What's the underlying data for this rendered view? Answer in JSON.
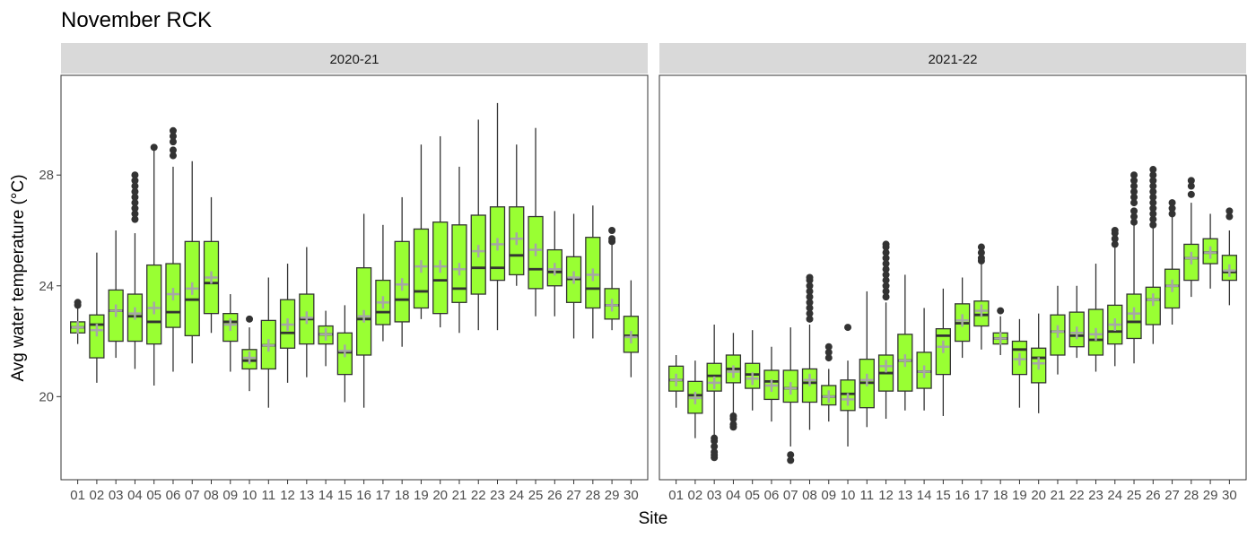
{
  "chart_data": {
    "type": "box",
    "title": "November RCK",
    "xlabel": "Site",
    "ylabel": "Avg water temperature (°C)",
    "ylim": [
      17.0,
      31.6
    ],
    "yticks": [
      20,
      24,
      28
    ],
    "ytick_labels": [
      "20",
      "24",
      "28"
    ],
    "sites": [
      "01",
      "02",
      "03",
      "04",
      "05",
      "06",
      "07",
      "08",
      "09",
      "10",
      "11",
      "12",
      "13",
      "14",
      "15",
      "16",
      "17",
      "18",
      "19",
      "20",
      "21",
      "22",
      "23",
      "24",
      "25",
      "26",
      "27",
      "28",
      "29",
      "30"
    ],
    "colors": {
      "box_fill": "#99ff33",
      "box_stroke": "#333333",
      "median": "#333333",
      "mean_marker": "#a6a6a6",
      "outlier": "#333333",
      "strip_fill": "#d9d9d9"
    },
    "panels": [
      {
        "name": "2020-21",
        "boxes": [
          {
            "site": "01",
            "whisker_low": 21.9,
            "q1": 22.3,
            "median": 22.5,
            "q3": 22.7,
            "whisker_high": 23.2,
            "mean": 22.5,
            "outliers": [
              23.3,
              23.4
            ]
          },
          {
            "site": "02",
            "whisker_low": 20.5,
            "q1": 21.4,
            "median": 22.6,
            "q3": 22.95,
            "whisker_high": 25.2,
            "mean": 22.4,
            "outliers": []
          },
          {
            "site": "03",
            "whisker_low": 21.4,
            "q1": 22.0,
            "median": 23.1,
            "q3": 23.85,
            "whisker_high": 26.0,
            "mean": 23.1,
            "outliers": []
          },
          {
            "site": "04",
            "whisker_low": 21.0,
            "q1": 22.0,
            "median": 22.9,
            "q3": 23.7,
            "whisker_high": 25.9,
            "mean": 23.0,
            "outliers": [
              26.4,
              26.6,
              26.8,
              27.0,
              27.2,
              27.4,
              27.6,
              27.8,
              28.0
            ]
          },
          {
            "site": "05",
            "whisker_low": 20.4,
            "q1": 21.9,
            "median": 22.7,
            "q3": 24.75,
            "whisker_high": 29.0,
            "mean": 23.2,
            "outliers": [
              29.0
            ]
          },
          {
            "site": "06",
            "whisker_low": 20.9,
            "q1": 22.5,
            "median": 23.05,
            "q3": 24.8,
            "whisker_high": 28.3,
            "mean": 23.7,
            "outliers": [
              28.7,
              28.9,
              29.2,
              29.4,
              29.6
            ]
          },
          {
            "site": "07",
            "whisker_low": 21.2,
            "q1": 22.2,
            "median": 23.5,
            "q3": 25.6,
            "whisker_high": 28.5,
            "mean": 23.9,
            "outliers": []
          },
          {
            "site": "08",
            "whisker_low": 22.3,
            "q1": 23.0,
            "median": 24.1,
            "q3": 25.6,
            "whisker_high": 27.2,
            "mean": 24.3,
            "outliers": []
          },
          {
            "site": "09",
            "whisker_low": 20.9,
            "q1": 22.0,
            "median": 22.7,
            "q3": 23.0,
            "whisker_high": 23.7,
            "mean": 22.6,
            "outliers": []
          },
          {
            "site": "10",
            "whisker_low": 20.2,
            "q1": 21.0,
            "median": 21.3,
            "q3": 21.7,
            "whisker_high": 22.5,
            "mean": 21.4,
            "outliers": [
              22.8
            ]
          },
          {
            "site": "11",
            "whisker_low": 19.6,
            "q1": 21.0,
            "median": 21.85,
            "q3": 22.75,
            "whisker_high": 24.3,
            "mean": 21.85,
            "outliers": []
          },
          {
            "site": "12",
            "whisker_low": 20.5,
            "q1": 21.75,
            "median": 22.3,
            "q3": 23.5,
            "whisker_high": 24.8,
            "mean": 22.6,
            "outliers": []
          },
          {
            "site": "13",
            "whisker_low": 20.7,
            "q1": 21.9,
            "median": 22.8,
            "q3": 23.7,
            "whisker_high": 25.4,
            "mean": 22.85,
            "outliers": []
          },
          {
            "site": "14",
            "whisker_low": 21.1,
            "q1": 21.9,
            "median": 22.25,
            "q3": 22.55,
            "whisker_high": 23.1,
            "mean": 22.25,
            "outliers": []
          },
          {
            "site": "15",
            "whisker_low": 19.8,
            "q1": 20.8,
            "median": 21.6,
            "q3": 22.3,
            "whisker_high": 23.3,
            "mean": 21.65,
            "outliers": []
          },
          {
            "site": "16",
            "whisker_low": 19.6,
            "q1": 21.5,
            "median": 22.8,
            "q3": 24.65,
            "whisker_high": 26.6,
            "mean": 22.9,
            "outliers": []
          },
          {
            "site": "17",
            "whisker_low": 22.0,
            "q1": 22.6,
            "median": 23.05,
            "q3": 24.2,
            "whisker_high": 26.2,
            "mean": 23.4,
            "outliers": []
          },
          {
            "site": "18",
            "whisker_low": 21.8,
            "q1": 22.7,
            "median": 23.5,
            "q3": 25.6,
            "whisker_high": 27.2,
            "mean": 24.05,
            "outliers": []
          },
          {
            "site": "19",
            "whisker_low": 22.8,
            "q1": 23.2,
            "median": 23.8,
            "q3": 26.05,
            "whisker_high": 29.1,
            "mean": 24.7,
            "outliers": []
          },
          {
            "site": "20",
            "whisker_low": 22.5,
            "q1": 23.0,
            "median": 24.2,
            "q3": 26.3,
            "whisker_high": 29.4,
            "mean": 24.7,
            "outliers": []
          },
          {
            "site": "21",
            "whisker_low": 22.3,
            "q1": 23.4,
            "median": 23.9,
            "q3": 26.2,
            "whisker_high": 28.3,
            "mean": 24.6,
            "outliers": []
          },
          {
            "site": "22",
            "whisker_low": 22.4,
            "q1": 23.7,
            "median": 24.65,
            "q3": 26.55,
            "whisker_high": 30.0,
            "mean": 25.25,
            "outliers": []
          },
          {
            "site": "23",
            "whisker_low": 22.4,
            "q1": 24.2,
            "median": 24.65,
            "q3": 26.85,
            "whisker_high": 30.6,
            "mean": 25.5,
            "outliers": []
          },
          {
            "site": "24",
            "whisker_low": 24.0,
            "q1": 24.4,
            "median": 25.1,
            "q3": 26.85,
            "whisker_high": 29.1,
            "mean": 25.7,
            "outliers": []
          },
          {
            "site": "25",
            "whisker_low": 22.9,
            "q1": 23.9,
            "median": 24.6,
            "q3": 26.5,
            "whisker_high": 29.7,
            "mean": 25.3,
            "outliers": []
          },
          {
            "site": "26",
            "whisker_low": 22.9,
            "q1": 24.0,
            "median": 24.5,
            "q3": 25.3,
            "whisker_high": 26.7,
            "mean": 24.6,
            "outliers": []
          },
          {
            "site": "27",
            "whisker_low": 22.1,
            "q1": 23.4,
            "median": 24.25,
            "q3": 25.05,
            "whisker_high": 26.6,
            "mean": 24.3,
            "outliers": []
          },
          {
            "site": "28",
            "whisker_low": 22.1,
            "q1": 23.2,
            "median": 23.9,
            "q3": 25.75,
            "whisker_high": 26.9,
            "mean": 24.4,
            "outliers": []
          },
          {
            "site": "29",
            "whisker_low": 22.4,
            "q1": 22.8,
            "median": 23.3,
            "q3": 23.9,
            "whisker_high": 25.5,
            "mean": 23.3,
            "outliers": [
              25.6,
              25.7,
              26.0
            ]
          },
          {
            "site": "30",
            "whisker_low": 20.7,
            "q1": 21.6,
            "median": 22.2,
            "q3": 22.9,
            "whisker_high": 24.2,
            "mean": 22.15,
            "outliers": []
          }
        ]
      },
      {
        "name": "2021-22",
        "boxes": [
          {
            "site": "01",
            "whisker_low": 19.6,
            "q1": 20.2,
            "median": 20.6,
            "q3": 21.1,
            "whisker_high": 21.5,
            "mean": 20.6,
            "outliers": []
          },
          {
            "site": "02",
            "whisker_low": 18.5,
            "q1": 19.4,
            "median": 20.05,
            "q3": 20.55,
            "whisker_high": 21.3,
            "mean": 19.95,
            "outliers": []
          },
          {
            "site": "03",
            "whisker_low": 18.5,
            "q1": 20.2,
            "median": 20.75,
            "q3": 21.2,
            "whisker_high": 22.6,
            "mean": 20.5,
            "outliers": [
              17.8,
              17.9,
              18.0,
              18.2,
              18.4,
              18.5
            ]
          },
          {
            "site": "04",
            "whisker_low": 19.3,
            "q1": 20.5,
            "median": 21.0,
            "q3": 21.5,
            "whisker_high": 22.3,
            "mean": 20.9,
            "outliers": [
              18.9,
              19.0,
              19.2,
              19.3
            ]
          },
          {
            "site": "05",
            "whisker_low": 19.5,
            "q1": 20.3,
            "median": 20.8,
            "q3": 21.2,
            "whisker_high": 22.4,
            "mean": 20.65,
            "outliers": []
          },
          {
            "site": "06",
            "whisker_low": 19.1,
            "q1": 19.9,
            "median": 20.55,
            "q3": 20.95,
            "whisker_high": 21.8,
            "mean": 20.4,
            "outliers": []
          },
          {
            "site": "07",
            "whisker_low": 18.2,
            "q1": 19.8,
            "median": 20.3,
            "q3": 20.95,
            "whisker_high": 22.5,
            "mean": 20.3,
            "outliers": [
              17.7,
              17.9
            ]
          },
          {
            "site": "08",
            "whisker_low": 18.8,
            "q1": 19.8,
            "median": 20.5,
            "q3": 21.0,
            "whisker_high": 22.6,
            "mean": 20.6,
            "outliers": [
              22.8,
              23.0,
              23.2,
              23.4,
              23.6,
              23.8,
              24.0,
              24.2,
              24.3
            ]
          },
          {
            "site": "09",
            "whisker_low": 19.1,
            "q1": 19.7,
            "median": 20.0,
            "q3": 20.4,
            "whisker_high": 21.0,
            "mean": 20.0,
            "outliers": [
              21.4,
              21.6,
              21.8
            ]
          },
          {
            "site": "10",
            "whisker_low": 18.2,
            "q1": 19.5,
            "median": 20.1,
            "q3": 20.6,
            "whisker_high": 21.3,
            "mean": 19.9,
            "outliers": [
              22.5
            ]
          },
          {
            "site": "11",
            "whisker_low": 18.9,
            "q1": 19.6,
            "median": 20.5,
            "q3": 21.35,
            "whisker_high": 23.8,
            "mean": 20.6,
            "outliers": []
          },
          {
            "site": "12",
            "whisker_low": 19.2,
            "q1": 20.2,
            "median": 20.85,
            "q3": 21.5,
            "whisker_high": 23.4,
            "mean": 21.1,
            "outliers": [
              23.6,
              23.8,
              24.0,
              24.2,
              24.4,
              24.6,
              24.8,
              25.0,
              25.2,
              25.4,
              25.5
            ]
          },
          {
            "site": "13",
            "whisker_low": 19.5,
            "q1": 20.2,
            "median": 21.3,
            "q3": 22.25,
            "whisker_high": 24.4,
            "mean": 21.3,
            "outliers": []
          },
          {
            "site": "14",
            "whisker_low": 19.5,
            "q1": 20.3,
            "median": 20.9,
            "q3": 21.6,
            "whisker_high": 23.2,
            "mean": 20.9,
            "outliers": []
          },
          {
            "site": "15",
            "whisker_low": 19.3,
            "q1": 20.8,
            "median": 22.2,
            "q3": 22.45,
            "whisker_high": 23.9,
            "mean": 21.8,
            "outliers": []
          },
          {
            "site": "16",
            "whisker_low": 21.4,
            "q1": 22.0,
            "median": 22.65,
            "q3": 23.35,
            "whisker_high": 24.3,
            "mean": 22.75,
            "outliers": []
          },
          {
            "site": "17",
            "whisker_low": 21.7,
            "q1": 22.55,
            "median": 22.95,
            "q3": 23.45,
            "whisker_high": 24.8,
            "mean": 23.1,
            "outliers": [
              24.9,
              25.0,
              25.2,
              25.4
            ]
          },
          {
            "site": "18",
            "whisker_low": 21.5,
            "q1": 21.9,
            "median": 22.1,
            "q3": 22.3,
            "whisker_high": 22.9,
            "mean": 22.1,
            "outliers": [
              23.1
            ]
          },
          {
            "site": "19",
            "whisker_low": 19.6,
            "q1": 20.8,
            "median": 21.7,
            "q3": 22.0,
            "whisker_high": 22.8,
            "mean": 21.35,
            "outliers": []
          },
          {
            "site": "20",
            "whisker_low": 19.4,
            "q1": 20.5,
            "median": 21.4,
            "q3": 21.75,
            "whisker_high": 23.0,
            "mean": 21.2,
            "outliers": []
          },
          {
            "site": "21",
            "whisker_low": 20.8,
            "q1": 21.5,
            "median": 22.35,
            "q3": 22.95,
            "whisker_high": 24.0,
            "mean": 22.35,
            "outliers": []
          },
          {
            "site": "22",
            "whisker_low": 21.4,
            "q1": 21.8,
            "median": 22.2,
            "q3": 23.05,
            "whisker_high": 24.0,
            "mean": 22.3,
            "outliers": []
          },
          {
            "site": "23",
            "whisker_low": 20.9,
            "q1": 21.5,
            "median": 22.05,
            "q3": 23.15,
            "whisker_high": 24.8,
            "mean": 22.25,
            "outliers": []
          },
          {
            "site": "24",
            "whisker_low": 21.1,
            "q1": 21.9,
            "median": 22.35,
            "q3": 23.3,
            "whisker_high": 25.4,
            "mean": 22.6,
            "outliers": [
              25.5,
              25.7,
              25.9,
              26.0
            ]
          },
          {
            "site": "25",
            "whisker_low": 21.2,
            "q1": 22.1,
            "median": 22.7,
            "q3": 23.7,
            "whisker_high": 26.2,
            "mean": 23.0,
            "outliers": [
              26.3,
              26.5,
              26.7,
              27.0,
              27.2,
              27.4,
              27.6,
              27.8,
              28.0
            ]
          },
          {
            "site": "26",
            "whisker_low": 21.9,
            "q1": 22.6,
            "median": 23.5,
            "q3": 23.95,
            "whisker_high": 26.1,
            "mean": 23.5,
            "outliers": [
              26.2,
              26.4,
              26.6,
              26.8,
              27.0,
              27.2,
              27.4,
              27.6,
              27.8,
              28.0,
              28.2
            ]
          },
          {
            "site": "27",
            "whisker_low": 22.6,
            "q1": 23.2,
            "median": 24.0,
            "q3": 24.6,
            "whisker_high": 26.5,
            "mean": 24.0,
            "outliers": [
              26.6,
              26.8,
              27.0
            ]
          },
          {
            "site": "28",
            "whisker_low": 23.6,
            "q1": 24.2,
            "median": 25.0,
            "q3": 25.5,
            "whisker_high": 27.0,
            "mean": 25.0,
            "outliers": [
              27.3,
              27.6,
              27.8
            ]
          },
          {
            "site": "29",
            "whisker_low": 23.9,
            "q1": 24.8,
            "median": 25.2,
            "q3": 25.7,
            "whisker_high": 26.6,
            "mean": 25.2,
            "outliers": []
          },
          {
            "site": "30",
            "whisker_low": 23.3,
            "q1": 24.2,
            "median": 24.5,
            "q3": 25.1,
            "whisker_high": 26.0,
            "mean": 24.55,
            "outliers": [
              26.5,
              26.7
            ]
          }
        ]
      }
    ]
  }
}
